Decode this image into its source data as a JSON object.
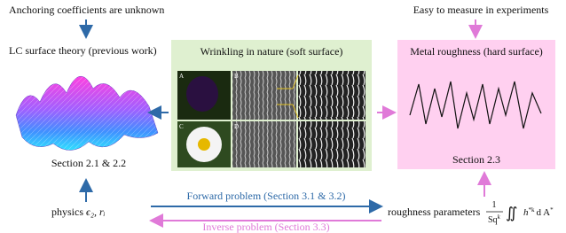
{
  "top_left": {
    "text": "Anchoring coefficients are unknown"
  },
  "top_right": {
    "text": "Easy to measure in experiments"
  },
  "left_panel": {
    "title": "LC surface theory (previous work)",
    "caption": "Section 2.1 & 2.2"
  },
  "middle_panel": {
    "title": "Wrinkling in nature (soft surface)",
    "panel_letters": [
      "A",
      "B",
      "C",
      "D"
    ]
  },
  "right_panel": {
    "title": "Metal roughness (hard surface)",
    "caption": "Section 2.3"
  },
  "bottom": {
    "physics": {
      "label": "physics",
      "symbols": "ϵ₂, rᵢ"
    },
    "forward": "Forward problem (Section 3.1 & 3.2)",
    "inverse": "Inverse problem (Section 3.3)",
    "roughness": {
      "label": "roughness parameters",
      "numerator": "1",
      "denominator": "Sq",
      "denominator_sup": "k",
      "integral": "∬",
      "integrand": "h",
      "integrand_sup": "*k",
      "differential": "d A",
      "differential_sup": "*"
    }
  }
}
